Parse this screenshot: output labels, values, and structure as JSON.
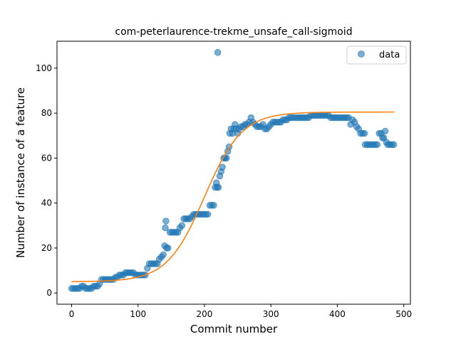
{
  "chart_data": {
    "type": "scatter",
    "title": "com-peterlaurence-trekme_unsafe_call-sigmoid",
    "xlabel": "Commit number",
    "ylabel": "Number of instance of a feature",
    "xlim": [
      -22,
      510
    ],
    "ylim": [
      -5,
      112
    ],
    "x_ticks": [
      0,
      100,
      200,
      300,
      400,
      500
    ],
    "y_ticks": [
      0,
      20,
      40,
      60,
      80,
      100
    ],
    "grid": false,
    "legend": {
      "position": "top-right",
      "entries": [
        "data"
      ]
    },
    "colors": {
      "data": "#1f77b4",
      "fit": "#ff7f0e"
    },
    "series": [
      {
        "name": "data",
        "kind": "scatter",
        "points": [
          [
            0,
            2
          ],
          [
            3,
            2
          ],
          [
            6,
            2
          ],
          [
            9,
            2
          ],
          [
            12,
            2
          ],
          [
            15,
            3
          ],
          [
            18,
            3
          ],
          [
            21,
            2
          ],
          [
            24,
            2
          ],
          [
            27,
            2
          ],
          [
            30,
            2
          ],
          [
            33,
            3
          ],
          [
            36,
            3
          ],
          [
            39,
            3
          ],
          [
            42,
            4
          ],
          [
            45,
            6
          ],
          [
            48,
            6
          ],
          [
            51,
            6
          ],
          [
            54,
            6
          ],
          [
            57,
            6
          ],
          [
            60,
            6
          ],
          [
            63,
            6
          ],
          [
            66,
            7
          ],
          [
            69,
            7
          ],
          [
            72,
            8
          ],
          [
            75,
            8
          ],
          [
            78,
            8
          ],
          [
            81,
            9
          ],
          [
            84,
            9
          ],
          [
            87,
            9
          ],
          [
            90,
            9
          ],
          [
            93,
            9
          ],
          [
            96,
            8
          ],
          [
            99,
            8
          ],
          [
            102,
            8
          ],
          [
            105,
            8
          ],
          [
            108,
            8
          ],
          [
            111,
            8
          ],
          [
            114,
            11
          ],
          [
            117,
            13
          ],
          [
            120,
            13
          ],
          [
            123,
            13
          ],
          [
            126,
            13
          ],
          [
            129,
            13
          ],
          [
            132,
            15
          ],
          [
            135,
            16
          ],
          [
            138,
            17
          ],
          [
            140,
            21
          ],
          [
            141,
            29
          ],
          [
            142,
            32
          ],
          [
            143,
            20
          ],
          [
            145,
            20
          ],
          [
            148,
            27
          ],
          [
            151,
            27
          ],
          [
            154,
            27
          ],
          [
            157,
            27
          ],
          [
            160,
            27
          ],
          [
            163,
            29
          ],
          [
            166,
            30
          ],
          [
            169,
            33
          ],
          [
            172,
            33
          ],
          [
            175,
            33
          ],
          [
            178,
            33
          ],
          [
            181,
            34
          ],
          [
            184,
            35
          ],
          [
            187,
            35
          ],
          [
            190,
            35
          ],
          [
            193,
            35
          ],
          [
            196,
            35
          ],
          [
            199,
            35
          ],
          [
            202,
            35
          ],
          [
            205,
            35
          ],
          [
            208,
            39
          ],
          [
            211,
            39
          ],
          [
            214,
            39
          ],
          [
            216,
            47
          ],
          [
            218,
            49
          ],
          [
            219,
            47
          ],
          [
            220,
            107
          ],
          [
            221,
            47
          ],
          [
            223,
            52
          ],
          [
            225,
            54
          ],
          [
            227,
            56
          ],
          [
            229,
            60
          ],
          [
            231,
            60
          ],
          [
            233,
            60
          ],
          [
            235,
            63
          ],
          [
            237,
            65
          ],
          [
            238,
            71
          ],
          [
            240,
            73
          ],
          [
            242,
            71
          ],
          [
            244,
            73
          ],
          [
            246,
            75
          ],
          [
            248,
            73
          ],
          [
            250,
            71
          ],
          [
            252,
            73
          ],
          [
            255,
            74
          ],
          [
            258,
            74
          ],
          [
            261,
            75
          ],
          [
            264,
            75
          ],
          [
            267,
            76
          ],
          [
            270,
            78
          ],
          [
            273,
            76
          ],
          [
            276,
            75
          ],
          [
            279,
            74
          ],
          [
            282,
            74
          ],
          [
            285,
            74
          ],
          [
            288,
            75
          ],
          [
            291,
            73
          ],
          [
            294,
            73
          ],
          [
            297,
            74
          ],
          [
            300,
            75
          ],
          [
            303,
            76
          ],
          [
            306,
            76
          ],
          [
            309,
            76
          ],
          [
            312,
            76
          ],
          [
            315,
            76
          ],
          [
            318,
            77
          ],
          [
            321,
            77
          ],
          [
            324,
            77
          ],
          [
            327,
            78
          ],
          [
            330,
            78
          ],
          [
            333,
            78
          ],
          [
            336,
            78
          ],
          [
            339,
            78
          ],
          [
            342,
            78
          ],
          [
            345,
            78
          ],
          [
            348,
            78
          ],
          [
            351,
            78
          ],
          [
            354,
            78
          ],
          [
            357,
            78
          ],
          [
            360,
            79
          ],
          [
            363,
            79
          ],
          [
            366,
            79
          ],
          [
            369,
            79
          ],
          [
            372,
            79
          ],
          [
            375,
            79
          ],
          [
            378,
            79
          ],
          [
            381,
            79
          ],
          [
            384,
            79
          ],
          [
            387,
            79
          ],
          [
            390,
            78
          ],
          [
            393,
            78
          ],
          [
            396,
            78
          ],
          [
            399,
            78
          ],
          [
            402,
            78
          ],
          [
            405,
            78
          ],
          [
            408,
            78
          ],
          [
            411,
            78
          ],
          [
            414,
            78
          ],
          [
            417,
            78
          ],
          [
            420,
            75
          ],
          [
            423,
            77
          ],
          [
            426,
            76
          ],
          [
            429,
            74
          ],
          [
            432,
            73
          ],
          [
            435,
            71
          ],
          [
            438,
            71
          ],
          [
            441,
            71
          ],
          [
            442,
            66
          ],
          [
            445,
            66
          ],
          [
            448,
            66
          ],
          [
            451,
            66
          ],
          [
            454,
            66
          ],
          [
            457,
            66
          ],
          [
            460,
            66
          ],
          [
            463,
            71
          ],
          [
            466,
            71
          ],
          [
            468,
            69
          ],
          [
            470,
            69
          ],
          [
            472,
            72
          ],
          [
            474,
            67
          ],
          [
            476,
            66
          ],
          [
            479,
            66
          ],
          [
            482,
            66
          ],
          [
            485,
            66
          ]
        ]
      },
      {
        "name": "",
        "kind": "line",
        "sigmoid": {
          "L": 75.5,
          "k": 0.0355,
          "x0": 200,
          "b": 5.0
        },
        "x_range": [
          0,
          487
        ]
      }
    ]
  }
}
